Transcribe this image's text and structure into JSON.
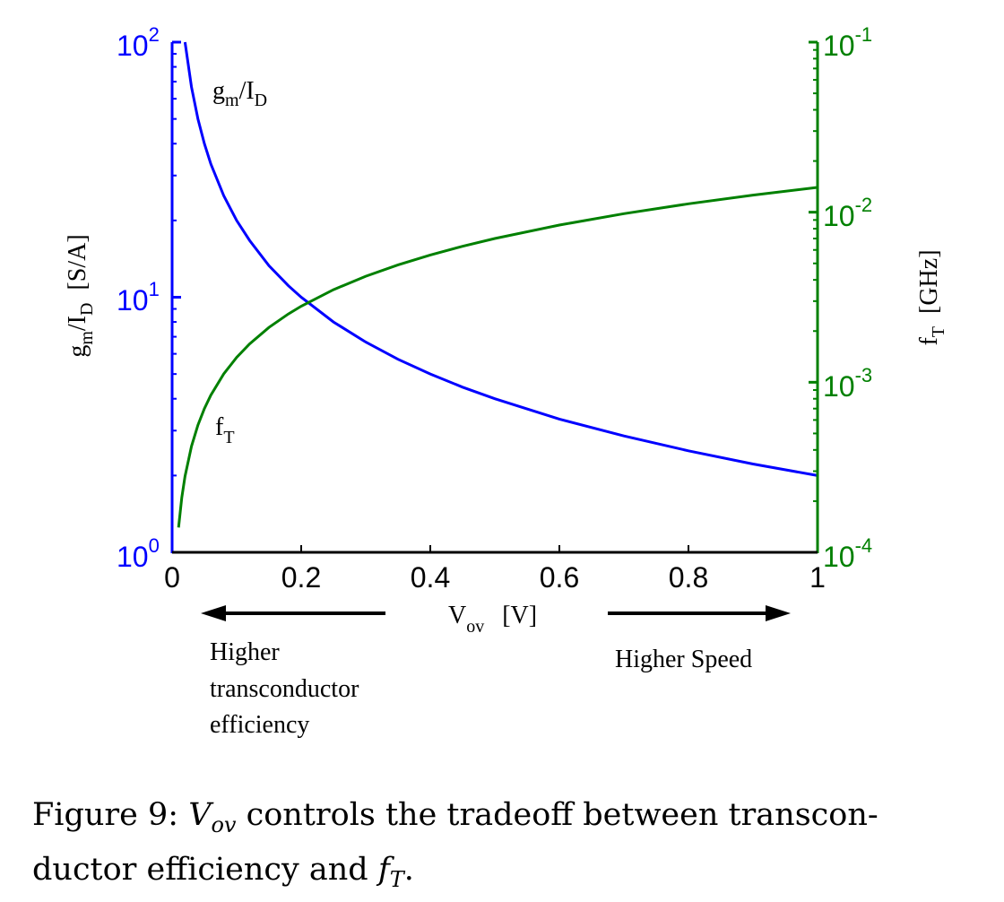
{
  "chart_data": {
    "type": "line",
    "x_axis": {
      "label_main": "V",
      "label_sub": "ov",
      "label_unit": "[V]",
      "range": [
        0,
        1
      ],
      "ticks": [
        0,
        0.2,
        0.4,
        0.6,
        0.8,
        1
      ],
      "tick_labels": [
        "0",
        "0.2",
        "0.4",
        "0.6",
        "0.8",
        "1"
      ]
    },
    "y_left": {
      "label_main": "g",
      "label_sub1": "m",
      "label_mid": "/I",
      "label_sub2": "D",
      "label_unit": "[S/A]",
      "scale": "log",
      "range": [
        1,
        100
      ],
      "tick_labels": [
        {
          "base": "10",
          "exp": "0"
        },
        {
          "base": "10",
          "exp": "1"
        },
        {
          "base": "10",
          "exp": "2"
        }
      ],
      "color": "#0000ff"
    },
    "y_right": {
      "label_main": "f",
      "label_sub": "T",
      "label_unit": "[GHz]",
      "scale": "log",
      "range": [
        0.0001,
        0.1
      ],
      "tick_labels": [
        {
          "base": "10",
          "exp": "-4"
        },
        {
          "base": "10",
          "exp": "-3"
        },
        {
          "base": "10",
          "exp": "-2"
        },
        {
          "base": "10",
          "exp": "-1"
        }
      ],
      "color": "#008000"
    },
    "series": [
      {
        "axis": "left",
        "color": "#0000ff",
        "x": [
          0.02,
          0.03,
          0.04,
          0.05,
          0.06,
          0.08,
          0.1,
          0.12,
          0.15,
          0.18,
          0.2,
          0.25,
          0.3,
          0.35,
          0.4,
          0.45,
          0.5,
          0.6,
          0.7,
          0.8,
          0.9,
          1.0
        ],
        "y": [
          100,
          66.7,
          50,
          40,
          33.3,
          25,
          20,
          16.7,
          13.3,
          11.1,
          10,
          8,
          6.67,
          5.71,
          5,
          4.44,
          4,
          3.33,
          2.86,
          2.5,
          2.22,
          2
        ]
      },
      {
        "axis": "right",
        "color": "#008000",
        "x": [
          0.01,
          0.015,
          0.02,
          0.03,
          0.04,
          0.05,
          0.06,
          0.08,
          0.1,
          0.12,
          0.15,
          0.18,
          0.2,
          0.25,
          0.3,
          0.35,
          0.4,
          0.45,
          0.5,
          0.6,
          0.7,
          0.8,
          0.9,
          1.0
        ],
        "y": [
          0.00014,
          0.00021,
          0.00028,
          0.00042,
          0.00056,
          0.0007,
          0.00084,
          0.00112,
          0.0014,
          0.00168,
          0.0021,
          0.00252,
          0.0028,
          0.0035,
          0.0042,
          0.0049,
          0.0056,
          0.0063,
          0.007,
          0.0084,
          0.0098,
          0.0112,
          0.0126,
          0.014
        ]
      }
    ],
    "annotations": {
      "gm_label": {
        "main": "g",
        "sub1": "m",
        "mid": "/I",
        "sub2": "D"
      },
      "ft_label": {
        "main": "f",
        "sub": "T"
      },
      "left_arrow_text": [
        "Higher",
        "transconductor",
        "efficiency"
      ],
      "right_arrow_text": "Higher Speed"
    }
  },
  "caption": {
    "prefix": "Figure 9: ",
    "math1": "V",
    "math1_sub": "ov",
    "middle": " controls the tradeoff between transcon-",
    "line2": "ductor efficiency and ",
    "math2": "f",
    "math2_sub": "T",
    "end": "."
  }
}
